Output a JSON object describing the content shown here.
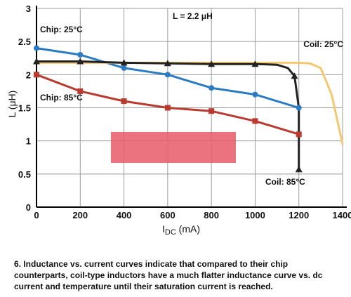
{
  "chart_data": {
    "type": "line",
    "title": "L = 2.2 μH",
    "xlabel": "I",
    "xlabel_sub": "DC",
    "xlabel_unit": "(mA)",
    "ylabel": "L (μH)",
    "xlim": [
      0,
      1400
    ],
    "ylim": [
      0,
      3
    ],
    "x_ticks": [
      0,
      200,
      400,
      600,
      800,
      1000,
      1200,
      1400
    ],
    "y_ticks": [
      0,
      0.5,
      1,
      1.5,
      2,
      2.5,
      3
    ],
    "y_tick_labels": [
      "0",
      "0.5",
      "1",
      "1.5",
      "2",
      "2.5",
      "3"
    ],
    "grid": true,
    "series": [
      {
        "name": "Chip: 25°C",
        "color": "#2b7bc2",
        "marker": "circle",
        "x": [
          0,
          200,
          400,
          600,
          800,
          1000,
          1200
        ],
        "y": [
          2.4,
          2.3,
          2.1,
          2.0,
          1.8,
          1.7,
          1.5
        ]
      },
      {
        "name": "Chip: 85°C",
        "color": "#b93a2e",
        "marker": "square",
        "x": [
          0,
          200,
          400,
          600,
          800,
          1000,
          1200
        ],
        "y": [
          2.0,
          1.75,
          1.6,
          1.5,
          1.45,
          1.3,
          1.1
        ]
      },
      {
        "name": "Coil: 25°C",
        "color": "#f5c870",
        "marker": "none",
        "x": [
          0,
          200,
          400,
          600,
          800,
          1000,
          1100,
          1200,
          1250,
          1300,
          1350,
          1400
        ],
        "y": [
          2.18,
          2.18,
          2.18,
          2.18,
          2.18,
          2.18,
          2.18,
          2.18,
          2.17,
          2.1,
          1.7,
          0.95
        ]
      },
      {
        "name": "Coil: 85°C",
        "color": "#222222",
        "marker": "triangle",
        "x": [
          0,
          200,
          400,
          600,
          800,
          1000,
          1100,
          1150,
          1180,
          1200,
          1200
        ],
        "y": [
          2.2,
          2.2,
          2.18,
          2.17,
          2.16,
          2.16,
          2.15,
          2.1,
          1.98,
          1.5,
          0.57
        ]
      }
    ],
    "marker_points": {
      "Chip: 25°C": [
        0,
        200,
        400,
        600,
        800,
        1000,
        1200
      ],
      "Chip: 85°C": [
        0,
        200,
        400,
        600,
        800,
        1000,
        1200
      ],
      "Coil: 85°C": [
        [
          0,
          2.2
        ],
        [
          200,
          2.2
        ],
        [
          400,
          2.18
        ],
        [
          600,
          2.17
        ],
        [
          800,
          2.16
        ],
        [
          1000,
          2.16
        ],
        [
          1180,
          1.98
        ],
        [
          1200,
          0.57
        ]
      ]
    },
    "annotations": [
      {
        "text": "Chip: 25°C",
        "x": 0,
        "y": 2.5
      },
      {
        "text": "Chip: 85°C",
        "x": 0,
        "y": 1.6
      },
      {
        "text": "Coil: 25°C",
        "x": 1400,
        "y": 2.3
      },
      {
        "text": "Coil: 85°C",
        "x": 1200,
        "y": 0.4
      }
    ],
    "overlay_color": "#e85a68"
  },
  "caption": "6. Inductance vs. current curves indicate that compared to their chip counterparts, coil-type inductors have a much flatter inductance curve vs. dc current and temperature until their saturation current is reached."
}
